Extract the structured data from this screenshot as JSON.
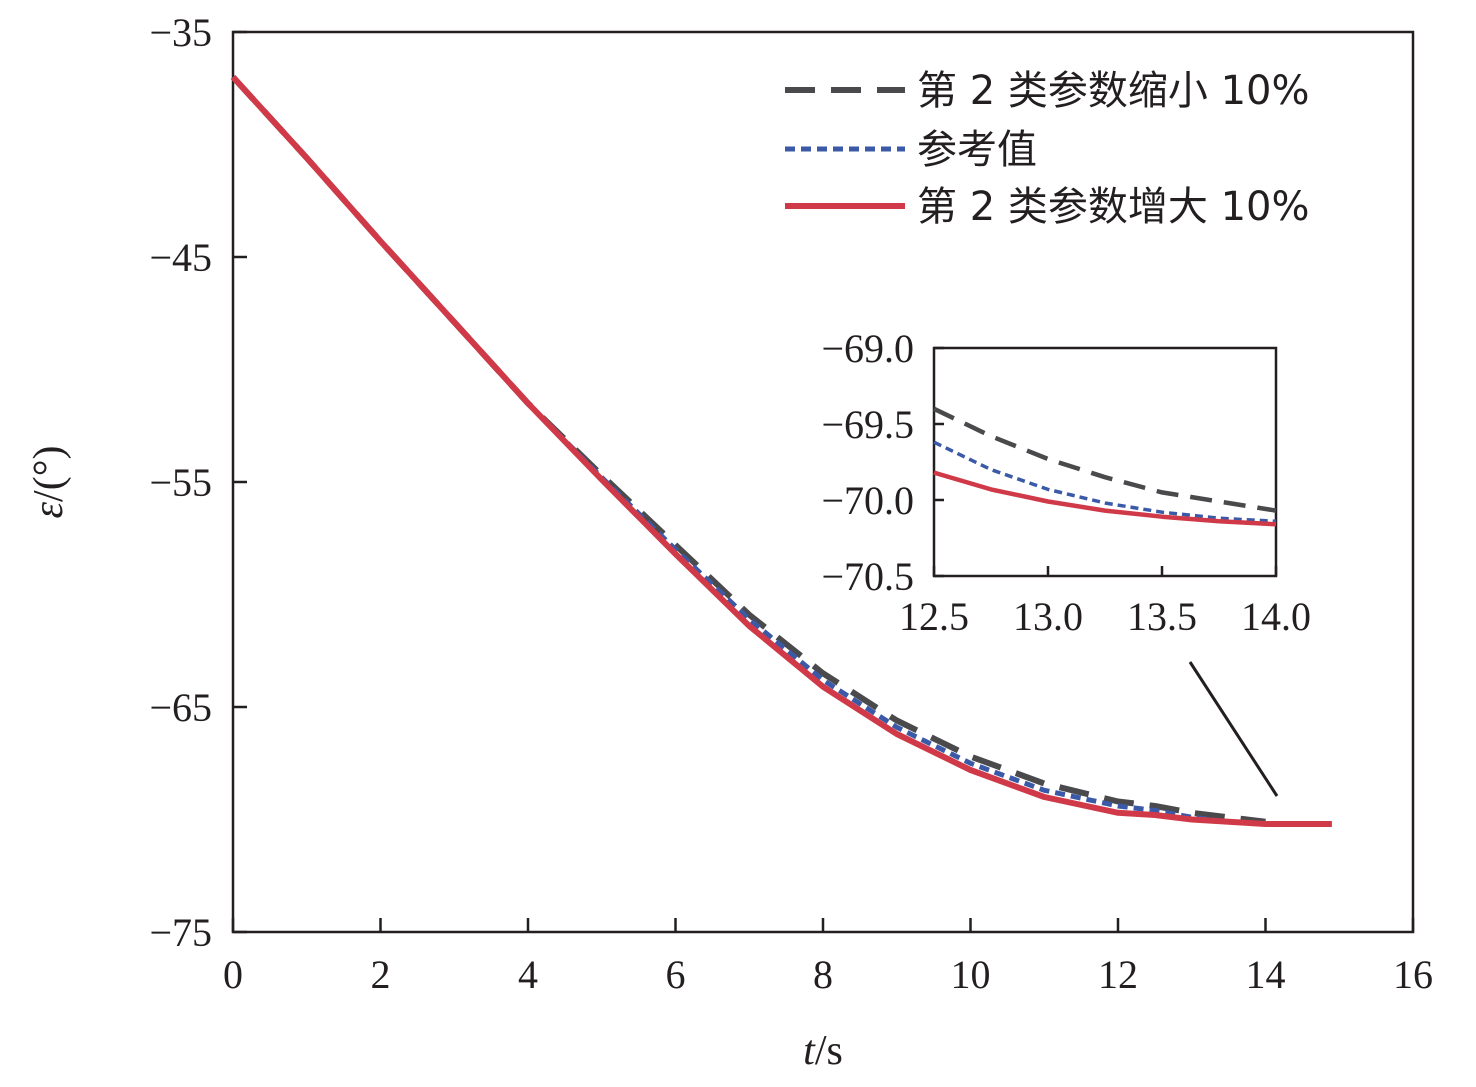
{
  "chart_data": {
    "type": "line",
    "xlabel": {
      "italic": "t",
      "rest": "/s"
    },
    "ylabel": {
      "italic": "ε",
      "rest": "/(°)"
    },
    "xlim": [
      0,
      16
    ],
    "ylim": [
      -75,
      -35
    ],
    "xticks": [
      "0",
      "2",
      "4",
      "6",
      "8",
      "10",
      "12",
      "14",
      "16"
    ],
    "yticks": [
      "−35",
      "−45",
      "−55",
      "−65",
      "−75"
    ],
    "legend_position": "top-right",
    "colors": {
      "shrink": "#4a4a4d",
      "reference": "#3a5aa8",
      "enlarge": "#d03a48"
    },
    "series": [
      {
        "name": "第 2 类参数缩小 10%",
        "style": "dashed",
        "x": [
          0,
          1,
          2,
          3,
          4,
          5,
          6,
          7,
          8,
          9,
          10,
          11,
          12,
          12.5,
          13,
          13.5,
          14
        ],
        "y": [
          -37.0,
          -40.6,
          -44.3,
          -47.9,
          -51.5,
          -54.7,
          -57.8,
          -60.9,
          -63.5,
          -65.6,
          -67.2,
          -68.4,
          -69.2,
          -69.4,
          -69.7,
          -69.9,
          -70.1
        ]
      },
      {
        "name": "参考值",
        "style": "dotted",
        "x": [
          0,
          1,
          2,
          3,
          4,
          5,
          6,
          7,
          8,
          9,
          10,
          11,
          12,
          12.5,
          13,
          13.5,
          14
        ],
        "y": [
          -37.0,
          -40.6,
          -44.3,
          -47.9,
          -51.5,
          -54.8,
          -58.0,
          -61.1,
          -63.8,
          -65.9,
          -67.5,
          -68.7,
          -69.4,
          -69.6,
          -69.9,
          -70.1,
          -70.2
        ]
      },
      {
        "name": "第 2 类参数增大 10%",
        "style": "solid",
        "x": [
          0,
          1,
          2,
          3,
          4,
          5,
          6,
          7,
          8,
          9,
          10,
          11,
          12,
          12.5,
          13,
          13.5,
          14,
          14.5,
          14.9
        ],
        "y": [
          -37.0,
          -40.6,
          -44.3,
          -47.9,
          -51.5,
          -54.9,
          -58.2,
          -61.4,
          -64.1,
          -66.2,
          -67.8,
          -69.0,
          -69.7,
          -69.8,
          -70.0,
          -70.1,
          -70.2,
          -70.2,
          -70.2
        ]
      }
    ],
    "inset": {
      "xlim": [
        12.5,
        14.0
      ],
      "ylim": [
        -70.5,
        -69.0
      ],
      "xticks": [
        "12.5",
        "13.0",
        "13.5",
        "14.0"
      ],
      "yticks": [
        "−69.0",
        "−69.5",
        "−70.0",
        "−70.5"
      ],
      "series": [
        {
          "x": [
            12.5,
            12.75,
            13.0,
            13.25,
            13.5,
            13.75,
            14.0
          ],
          "y": [
            -69.4,
            -69.58,
            -69.73,
            -69.85,
            -69.95,
            -70.01,
            -70.07
          ]
        },
        {
          "x": [
            12.5,
            12.75,
            13.0,
            13.25,
            13.5,
            13.75,
            14.0
          ],
          "y": [
            -69.62,
            -69.8,
            -69.93,
            -70.02,
            -70.08,
            -70.12,
            -70.14
          ]
        },
        {
          "x": [
            12.5,
            12.75,
            13.0,
            13.25,
            13.5,
            13.75,
            14.0
          ],
          "y": [
            -69.82,
            -69.93,
            -70.01,
            -70.07,
            -70.11,
            -70.14,
            -70.16
          ]
        }
      ]
    }
  }
}
